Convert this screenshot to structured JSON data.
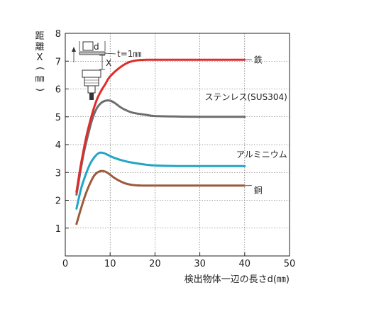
{
  "chart_data": {
    "type": "line",
    "xlabel": "検出物体一辺の長さd(㎜)",
    "ylabel": "距離X(㎜)",
    "xlim": [
      0,
      50
    ],
    "ylim": [
      0,
      8
    ],
    "xticks": [
      "0",
      "10",
      "20",
      "30",
      "40",
      "50"
    ],
    "yticks": [
      "1",
      "2",
      "3",
      "4",
      "5",
      "6",
      "7",
      "8"
    ],
    "grid": true,
    "inset": {
      "d_label": "d",
      "x_label": "X",
      "t_label": "t=1㎜"
    },
    "series": [
      {
        "name": "鉄",
        "color": "#e02b2b",
        "x": [
          2.5,
          3.5,
          5,
          7,
          9,
          10,
          12,
          14,
          16,
          18,
          20,
          25,
          30,
          35,
          40
        ],
        "y": [
          2.3,
          3.3,
          4.5,
          5.6,
          6.2,
          6.45,
          6.75,
          6.95,
          7.03,
          7.05,
          7.05,
          7.05,
          7.05,
          7.05,
          7.05
        ]
      },
      {
        "name": "ステンレス(SUS304)",
        "color": "#6e6e6e",
        "x": [
          2.5,
          4,
          5,
          6,
          7,
          8,
          9,
          10,
          11,
          12,
          13,
          15,
          18,
          20,
          25,
          30,
          35,
          40
        ],
        "y": [
          2.2,
          3.6,
          4.3,
          4.9,
          5.3,
          5.5,
          5.58,
          5.58,
          5.5,
          5.38,
          5.28,
          5.15,
          5.07,
          5.03,
          5.01,
          5.0,
          5.0,
          5.0
        ]
      },
      {
        "name": "アルミニウム",
        "color": "#22a5c7",
        "x": [
          2.5,
          3.5,
          4.5,
          5.5,
          6.5,
          7.5,
          8.5,
          9.5,
          11,
          13,
          15,
          18,
          20,
          25,
          30,
          35,
          40
        ],
        "y": [
          1.7,
          2.4,
          2.9,
          3.3,
          3.55,
          3.7,
          3.7,
          3.63,
          3.52,
          3.42,
          3.35,
          3.28,
          3.25,
          3.23,
          3.23,
          3.23,
          3.23
        ]
      },
      {
        "name": "銅",
        "color": "#9c5a3c",
        "x": [
          2.5,
          3.5,
          4.5,
          5.5,
          6.5,
          7.5,
          8.5,
          9.5,
          11,
          13,
          15,
          17,
          20,
          25,
          30,
          35,
          40
        ],
        "y": [
          1.15,
          1.7,
          2.2,
          2.6,
          2.9,
          3.03,
          3.05,
          2.98,
          2.8,
          2.63,
          2.55,
          2.53,
          2.53,
          2.53,
          2.53,
          2.53,
          2.53
        ]
      }
    ]
  }
}
